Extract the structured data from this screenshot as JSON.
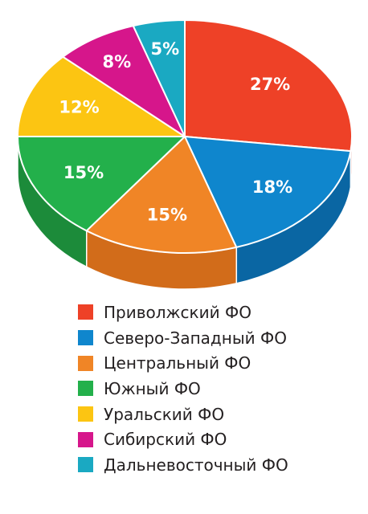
{
  "chart_data": {
    "type": "pie",
    "title": "",
    "legend_position": "bottom",
    "style": "3d-pie",
    "series": [
      {
        "name": "Приволжский ФО",
        "value": 27,
        "label": "27%",
        "color": "#ee4127",
        "side_color": "#c2311e"
      },
      {
        "name": "Северо-Западный ФО",
        "value": 18,
        "label": "18%",
        "color": "#0f86cd",
        "side_color": "#0a66a3"
      },
      {
        "name": "Центральный ФО",
        "value": 15,
        "label": "15%",
        "color": "#f08526",
        "side_color": "#d26c1a"
      },
      {
        "name": "Южный ФО",
        "value": 15,
        "label": "15%",
        "color": "#23b04b",
        "side_color": "#1c8b3a"
      },
      {
        "name": "Уральский ФО",
        "value": 12,
        "label": "12%",
        "color": "#fcc512",
        "side_color": "#d6a40a"
      },
      {
        "name": "Сибирский ФО",
        "value": 8,
        "label": "8%",
        "color": "#d6168b",
        "side_color": "#a8106c"
      },
      {
        "name": "Дальневосточный ФО",
        "value": 5,
        "label": "5%",
        "color": "#1aa9c2",
        "side_color": "#12879b"
      }
    ]
  }
}
